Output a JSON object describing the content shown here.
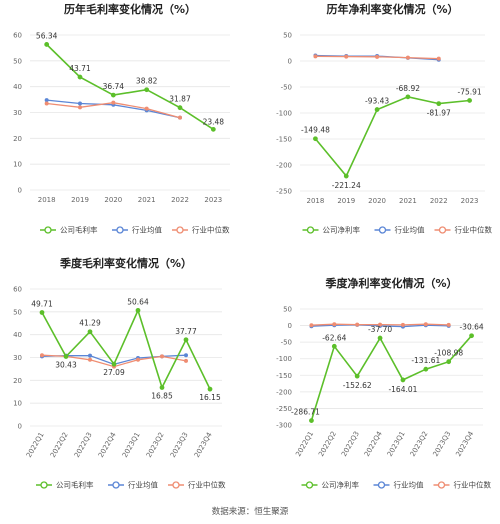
{
  "source": "数据来源：恒生聚源",
  "legend_labels": [
    "公司毛利率",
    "行业均值",
    "行业中位数"
  ],
  "legend_labels_net": [
    "公司净利率",
    "行业均值",
    "行业中位数"
  ],
  "colors": {
    "company": "#5cbf2a",
    "mean": "#5b86d6",
    "median": "#ef8d72",
    "text": "#333333"
  },
  "chart_data": [
    {
      "type": "line",
      "title": "历年毛利率变化情况（%）",
      "categories": [
        "2018",
        "2019",
        "2020",
        "2021",
        "2022",
        "2023"
      ],
      "ylim": [
        0,
        60
      ],
      "yticks": [
        0,
        10,
        20,
        30,
        40,
        50,
        60
      ],
      "series": [
        {
          "name": "公司毛利率",
          "values": [
            56.34,
            43.71,
            36.74,
            38.82,
            31.87,
            23.48
          ],
          "labels": [
            "56.34",
            "43.71",
            "36.74",
            "38.82",
            "31.87",
            "23.48"
          ]
        },
        {
          "name": "行业均值",
          "values": [
            34.8,
            33.5,
            33.0,
            30.8,
            28.0,
            null
          ]
        },
        {
          "name": "行业中位数",
          "values": [
            33.5,
            32.0,
            33.8,
            31.5,
            28.0,
            null
          ]
        }
      ]
    },
    {
      "type": "line",
      "title": "历年净利率变化情况（%）",
      "categories": [
        "2018",
        "2019",
        "2020",
        "2021",
        "2022",
        "2023"
      ],
      "ylim": [
        -250,
        50
      ],
      "yticks": [
        -250,
        -200,
        -150,
        -100,
        -50,
        0,
        50
      ],
      "series": [
        {
          "name": "公司净利率",
          "values": [
            -149.48,
            -221.24,
            -93.43,
            -68.92,
            -81.97,
            -75.91
          ],
          "labels": [
            "-149.48",
            "-221.24",
            "-93.43",
            "-68.92",
            "-81.97",
            "-75.91"
          ]
        },
        {
          "name": "行业均值",
          "values": [
            10.5,
            9.5,
            9.5,
            6.0,
            2.5,
            null
          ]
        },
        {
          "name": "行业中位数",
          "values": [
            9.0,
            8.5,
            8.0,
            6.5,
            4.5,
            null
          ]
        }
      ]
    },
    {
      "type": "line",
      "title": "季度毛利率变化情况（%）",
      "categories": [
        "2022Q1",
        "2022Q2",
        "2022Q3",
        "2022Q4",
        "2023Q1",
        "2023Q2",
        "2023Q3",
        "2023Q4"
      ],
      "ylim": [
        0,
        60
      ],
      "yticks": [
        0,
        10,
        20,
        30,
        40,
        50,
        60
      ],
      "series": [
        {
          "name": "公司毛利率",
          "values": [
            49.71,
            30.43,
            41.29,
            27.09,
            50.64,
            16.85,
            37.77,
            16.15
          ],
          "labels": [
            "49.71",
            "30.43",
            "41.29",
            "27.09",
            "50.64",
            "16.85",
            "37.77",
            "16.15"
          ]
        },
        {
          "name": "行业均值",
          "values": [
            30.5,
            30.8,
            30.8,
            27.0,
            29.8,
            30.5,
            31.0,
            null
          ]
        },
        {
          "name": "行业中位数",
          "values": [
            31.0,
            30.5,
            29.0,
            26.0,
            29.0,
            30.5,
            28.5,
            null
          ]
        }
      ]
    },
    {
      "type": "line",
      "title": "季度净利率变化情况（%）",
      "categories": [
        "2022Q1",
        "2022Q2",
        "2022Q3",
        "2022Q4",
        "2023Q1",
        "2023Q2",
        "2023Q3",
        "2023Q4"
      ],
      "ylim": [
        -300,
        50
      ],
      "yticks": [
        -300,
        -250,
        -200,
        -150,
        -100,
        -50,
        0,
        50
      ],
      "series": [
        {
          "name": "公司净利率",
          "values": [
            -286.71,
            -62.64,
            -152.62,
            -37.7,
            -164.01,
            -131.61,
            -108.98,
            -30.64
          ],
          "labels": [
            "-286.71",
            "-62.64",
            "-152.62",
            "-37.70",
            "-164.01",
            "-131.61",
            "-108.98",
            "-30.64"
          ]
        },
        {
          "name": "行业均值",
          "values": [
            -2.0,
            1.0,
            2.0,
            -1.0,
            -3.0,
            1.0,
            -1.0,
            null
          ]
        },
        {
          "name": "行业中位数",
          "values": [
            1.0,
            4.0,
            3.0,
            3.0,
            2.0,
            4.0,
            2.0,
            null
          ]
        }
      ]
    }
  ]
}
